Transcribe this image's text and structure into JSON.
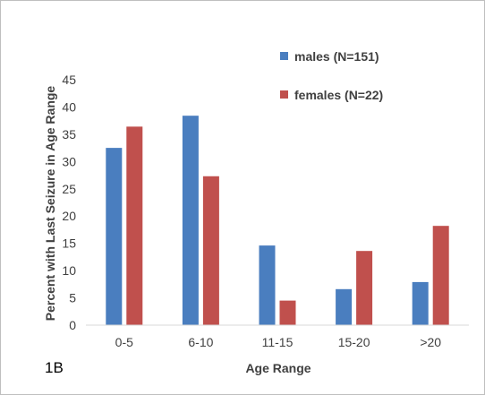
{
  "panel_label": "1B",
  "chart_data": {
    "type": "bar",
    "xlabel": "Age Range",
    "ylabel": "Percent with Last Seizure in Age Range",
    "ylim": [
      0,
      45
    ],
    "yticks": [
      0,
      5,
      10,
      15,
      20,
      25,
      30,
      35,
      40,
      45
    ],
    "grid": false,
    "legend_position": "top-right",
    "categories": [
      "0-5",
      "6-10",
      "11-15",
      "15-20",
      ">20"
    ],
    "series": [
      {
        "name": "males (N=151)",
        "color": "#4a7ebf",
        "values": [
          32.5,
          38.4,
          14.6,
          6.6,
          7.9
        ]
      },
      {
        "name": "females (N=22)",
        "color": "#c0504d",
        "values": [
          36.4,
          27.3,
          4.5,
          13.6,
          18.2
        ]
      }
    ]
  }
}
